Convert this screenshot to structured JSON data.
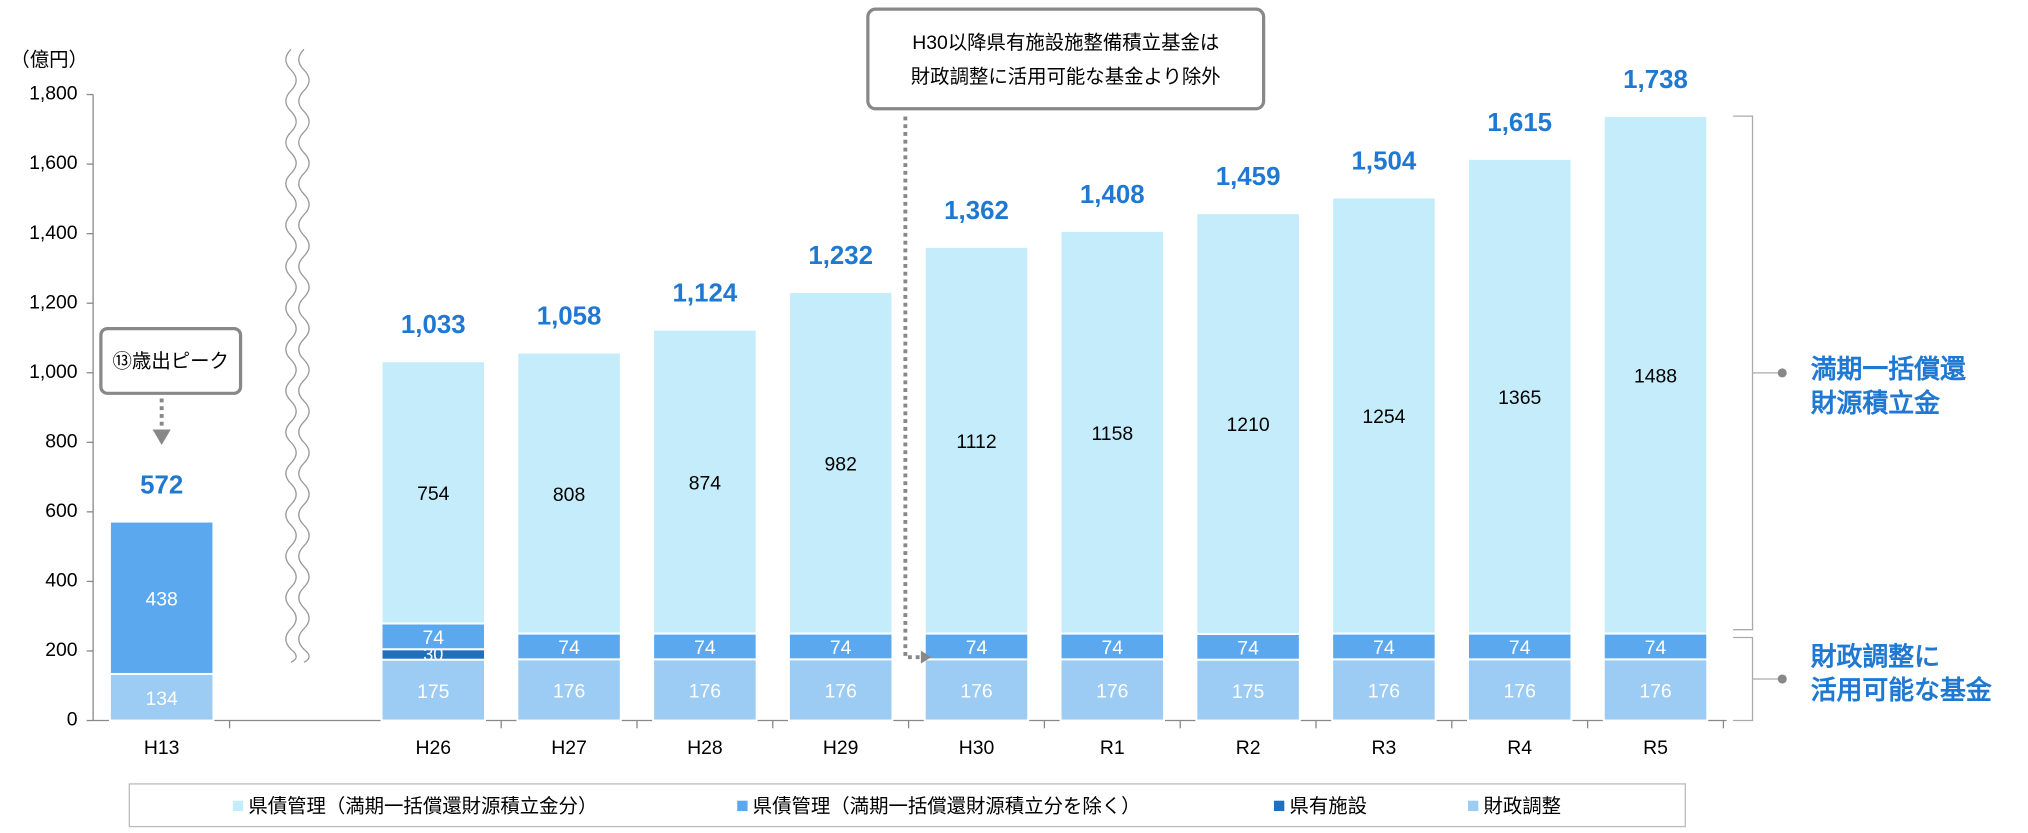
{
  "chart_data": {
    "type": "stacked-bar",
    "unit_label": "（億円）",
    "categories": [
      "H13",
      "H26",
      "H27",
      "H28",
      "H29",
      "H30",
      "R1",
      "R2",
      "R3",
      "R4",
      "R5"
    ],
    "series": [
      {
        "name": "財政調整",
        "color": "#9ccbf3",
        "values": [
          134,
          175,
          176,
          176,
          176,
          176,
          176,
          175,
          176,
          176,
          176
        ]
      },
      {
        "name": "県有施設",
        "color": "#1f6fc0",
        "values": [
          null,
          30,
          null,
          null,
          null,
          null,
          null,
          null,
          null,
          null,
          null
        ]
      },
      {
        "name": "県債管理（満期一括償還財源積立分を除く）",
        "color": "#5ba8ef",
        "values": [
          438,
          74,
          74,
          74,
          74,
          74,
          74,
          74,
          74,
          74,
          74
        ]
      },
      {
        "name": "県債管理（満期一括償還財源積立金分）",
        "color": "#c5ecfb",
        "values": [
          null,
          754,
          808,
          874,
          982,
          1112,
          1158,
          1210,
          1254,
          1365,
          1488
        ]
      }
    ],
    "totals": {
      "values": [
        572,
        1033,
        1058,
        1124,
        1232,
        1362,
        1408,
        1459,
        1504,
        1615,
        1738
      ],
      "value_labels": [
        "572",
        "1,033",
        "1,058",
        "1,124",
        "1,232",
        "1,362",
        "1,408",
        "1,459",
        "1,504",
        "1,615",
        "1,738"
      ]
    },
    "ylim": [
      0,
      1800
    ],
    "yticks": [
      0,
      200,
      400,
      600,
      800,
      {
        "value": 1000,
        "label": "1,000"
      },
      {
        "value": 1200,
        "label": "1,200"
      },
      {
        "value": 1400,
        "label": "1,400"
      },
      {
        "value": 1600,
        "label": "1,600"
      },
      {
        "value": 1800,
        "label": "1,800"
      }
    ],
    "annotations": {
      "peak": "⑬歳出ピーク",
      "note": [
        "H30以降県有施設施整備積立基金は",
        "財政調整に活用可能な基金より除外"
      ],
      "upper_bracket": [
        "満期一括償還",
        "財源積立金"
      ],
      "lower_bracket": [
        "財政調整に",
        "活用可能な基金"
      ]
    }
  }
}
